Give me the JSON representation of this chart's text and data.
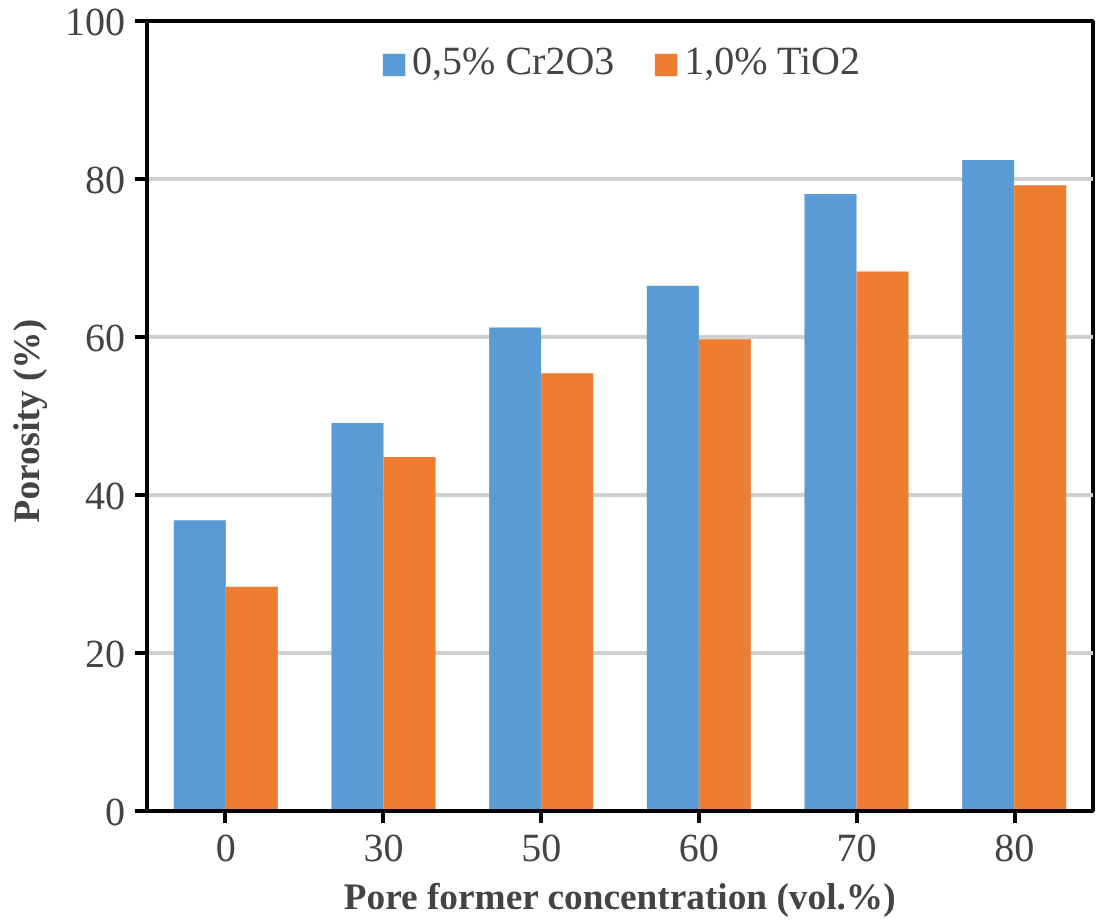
{
  "chart_data": {
    "type": "bar",
    "xlabel": "Pore former concentration (vol.%)",
    "ylabel": "Porosity  (%)",
    "categories": [
      "0",
      "30",
      "50",
      "60",
      "70",
      "80"
    ],
    "series": [
      {
        "name": "0,5% Cr2O3",
        "color": "#5b9bd5",
        "values": [
          36.8,
          49.1,
          61.2,
          66.5,
          78.1,
          82.4
        ]
      },
      {
        "name": "1,0% TiO2",
        "color": "#ed7d31",
        "values": [
          28.4,
          44.8,
          55.4,
          59.7,
          68.3,
          79.2
        ]
      }
    ],
    "ylim": [
      0,
      100
    ],
    "yticks": [
      0,
      20,
      40,
      60,
      80,
      100
    ],
    "grid": "y",
    "legend": "top"
  }
}
